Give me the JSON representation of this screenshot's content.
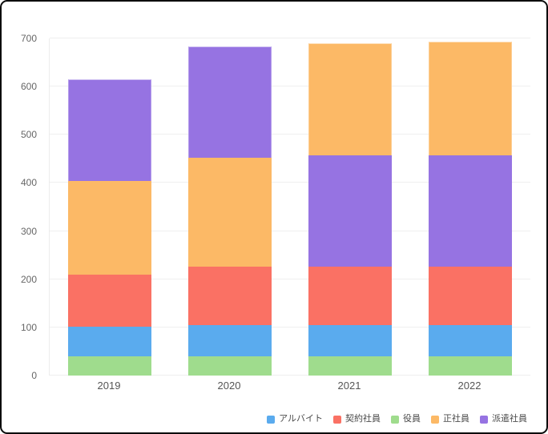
{
  "window": {
    "background": "#ffffff",
    "border_color": "#0b0b0b"
  },
  "chart_data": {
    "type": "bar",
    "stacked": true,
    "title": "",
    "xlabel": "",
    "ylabel": "",
    "categories": [
      "2019",
      "2020",
      "2021",
      "2022"
    ],
    "series": [
      {
        "key": "part-time",
        "name": "アルバイト",
        "color": "#5aabee",
        "values": [
          61,
          64,
          64,
          64
        ]
      },
      {
        "key": "contract",
        "name": "契約社員",
        "color": "#fa7164",
        "values": [
          108,
          122,
          123,
          123
        ]
      },
      {
        "key": "executive",
        "name": "役員",
        "color": "#9fdc8d",
        "values": [
          40,
          40,
          40,
          40
        ]
      },
      {
        "key": "full-time",
        "name": "正社員",
        "color": "#fcb966",
        "values": [
          195,
          227,
          233,
          236
        ]
      },
      {
        "key": "temp-staff",
        "name": "派遣社員",
        "color": "#9673e2",
        "values": [
          212,
          231,
          230,
          230
        ]
      }
    ],
    "totals": [
      616,
      684,
      690,
      693
    ],
    "stack_order_bottom_to_top": [
      [
        "executive",
        "part-time",
        "contract",
        "full-time",
        "temp-staff"
      ],
      [
        "executive",
        "part-time",
        "contract",
        "full-time",
        "temp-staff"
      ],
      [
        "executive",
        "part-time",
        "contract",
        "temp-staff",
        "full-time"
      ],
      [
        "executive",
        "part-time",
        "contract",
        "temp-staff",
        "full-time"
      ]
    ],
    "ylim": [
      0,
      700
    ],
    "yticks": [
      0,
      100,
      200,
      300,
      400,
      500,
      600,
      700
    ],
    "grid": true,
    "gridline_color": "#efefef",
    "axis_tick_color": "#666666",
    "legend_position": "bottom-right",
    "legend_text_color": "#4a4a4a"
  }
}
